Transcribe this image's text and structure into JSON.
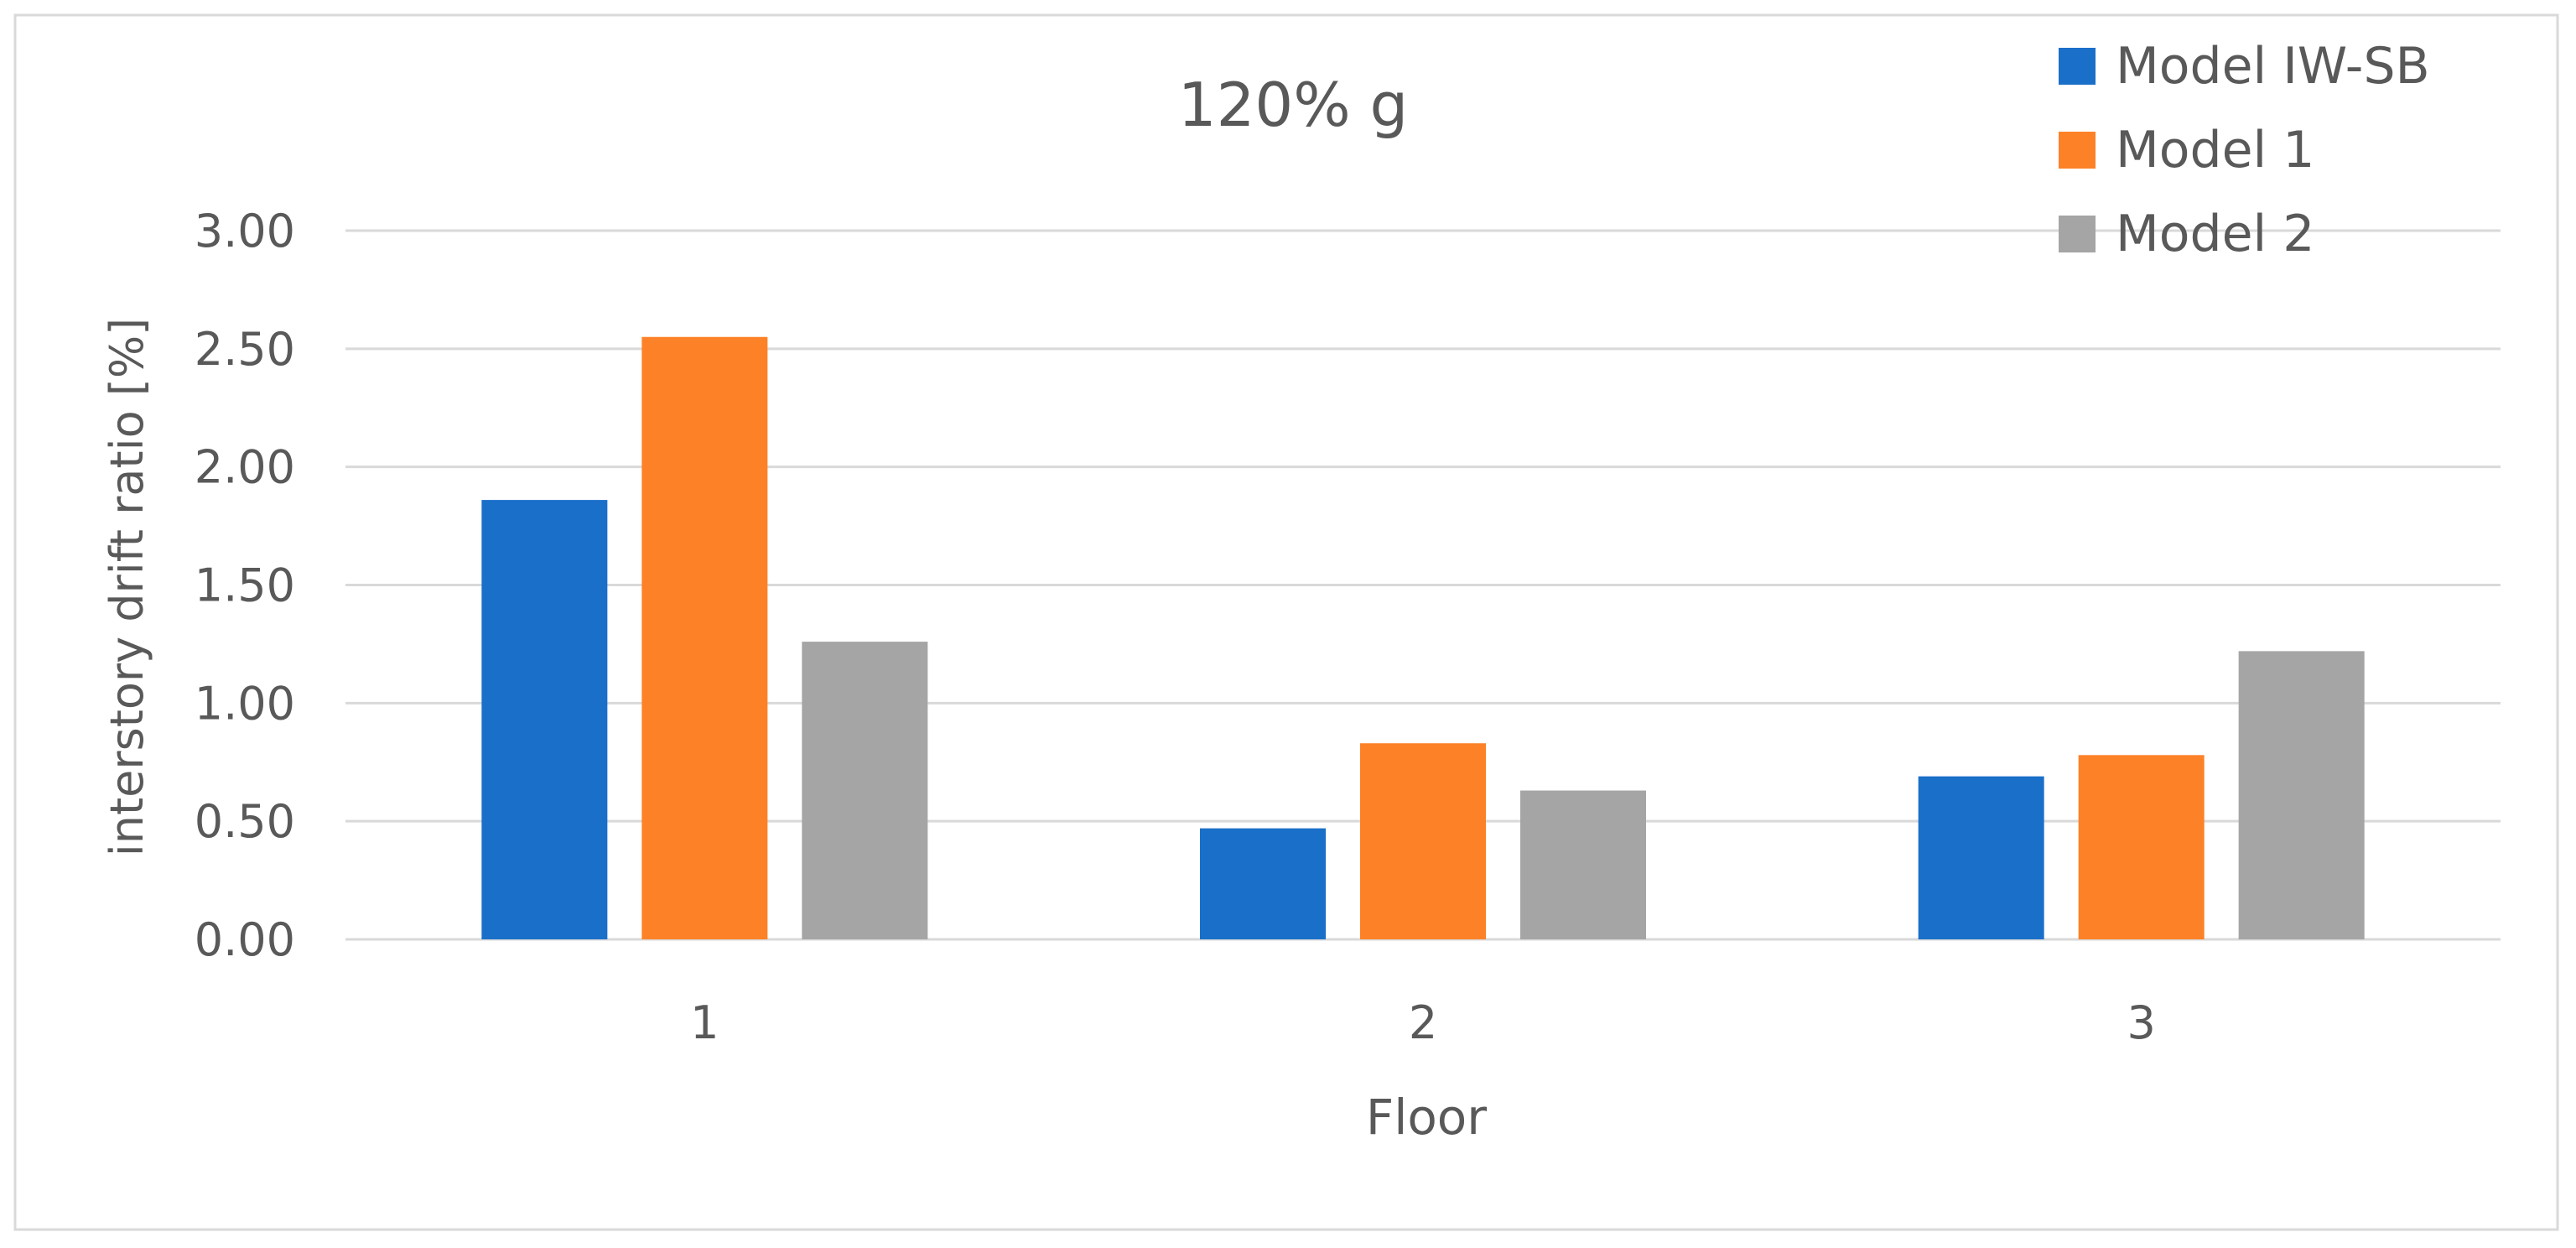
{
  "chart_data": {
    "type": "bar",
    "title": "120% g",
    "xlabel": "Floor",
    "ylabel": "interstory drift ratio [%]",
    "categories": [
      "1",
      "2",
      "3"
    ],
    "series": [
      {
        "name": "Model IW-SB",
        "color": "#1a6fc9",
        "values": [
          1.86,
          0.47,
          0.69
        ]
      },
      {
        "name": "Model 1",
        "color": "#fd8127",
        "values": [
          2.55,
          0.83,
          0.78
        ]
      },
      {
        "name": "Model 2",
        "color": "#a5a5a5",
        "values": [
          1.26,
          0.63,
          1.22
        ]
      }
    ],
    "ylim": [
      0,
      3
    ],
    "yticks": [
      "0.00",
      "0.50",
      "1.00",
      "1.50",
      "2.00",
      "2.50",
      "3.00"
    ],
    "grid": true,
    "legend_position": "top-right"
  },
  "colors": {
    "grid": "#d9d9d9",
    "axis_text": "#595959",
    "frame": "#d9d9d9"
  }
}
